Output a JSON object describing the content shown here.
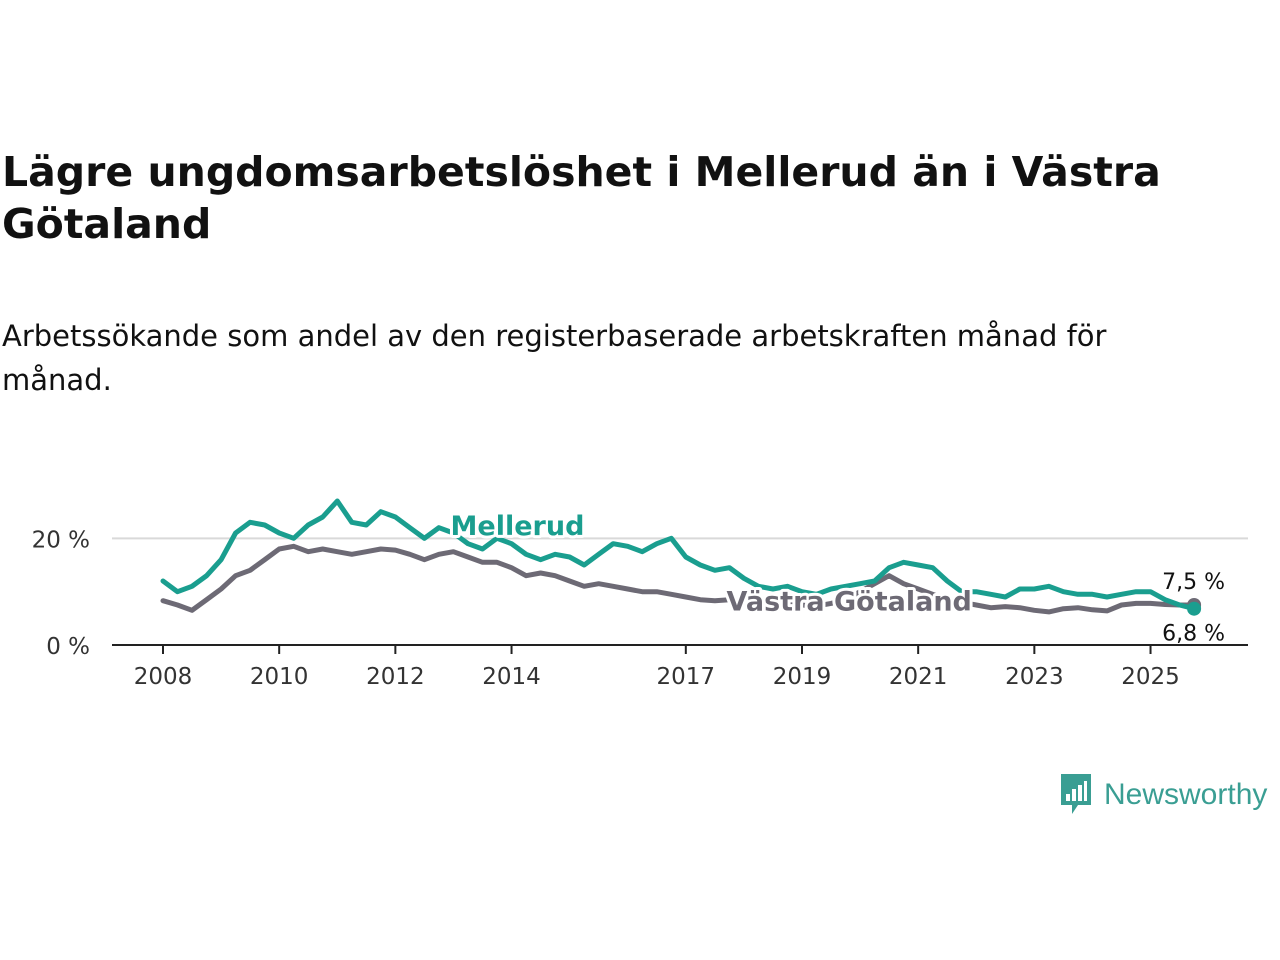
{
  "title": "Lägre ungdomsarbetslöshet i Mellerud än i Västra Götaland",
  "subtitle": "Arbetssökande som andel av den registerbaserade arbetskraften månad för månad.",
  "brand": {
    "name": "Newsworthy",
    "icon": "bar-chart-speech-bubble-icon",
    "color": "#3a9e93"
  },
  "chart_data": {
    "type": "line",
    "x_start": 2008,
    "x_end": 2025.8,
    "ylim": [
      0,
      30
    ],
    "xticks": [
      2008,
      2010,
      2012,
      2014,
      2017,
      2019,
      2021,
      2023,
      2025
    ],
    "xtick_labels": [
      "2008",
      "2010",
      "2012",
      "2014",
      "2017",
      "2019",
      "2021",
      "2023",
      "2025"
    ],
    "yticks": [
      0,
      20
    ],
    "ytick_labels": [
      "0 %",
      "20 %"
    ],
    "grid": "horizontal",
    "series": [
      {
        "name": "Mellerud",
        "label": "Mellerud",
        "color": "#1a9e8f",
        "end_label": "6,8 %",
        "x": [
          2008,
          2008.25,
          2008.5,
          2008.75,
          2009,
          2009.25,
          2009.5,
          2009.75,
          2010,
          2010.25,
          2010.5,
          2010.75,
          2011,
          2011.25,
          2011.5,
          2011.75,
          2012,
          2012.25,
          2012.5,
          2012.75,
          2013,
          2013.25,
          2013.5,
          2013.75,
          2014,
          2014.25,
          2014.5,
          2014.75,
          2015,
          2015.25,
          2015.5,
          2015.75,
          2016,
          2016.25,
          2016.5,
          2016.75,
          2017,
          2017.25,
          2017.5,
          2017.75,
          2018,
          2018.25,
          2018.5,
          2018.75,
          2019,
          2019.25,
          2019.5,
          2019.75,
          2020,
          2020.25,
          2020.5,
          2020.75,
          2021,
          2021.25,
          2021.5,
          2021.75,
          2022,
          2022.25,
          2022.5,
          2022.75,
          2023,
          2023.25,
          2023.5,
          2023.75,
          2024,
          2024.25,
          2024.5,
          2024.75,
          2025,
          2025.25,
          2025.5,
          2025.75
        ],
        "values": [
          12,
          10,
          11,
          13,
          16,
          21,
          23,
          22.5,
          21,
          20,
          22.5,
          24,
          27,
          23,
          22.5,
          25,
          24,
          22,
          20,
          22,
          21,
          19,
          18,
          20,
          19,
          17,
          16,
          17,
          16.5,
          15,
          17,
          19,
          18.5,
          17.5,
          19,
          20,
          16.5,
          15,
          14,
          14.5,
          12.5,
          11,
          10.5,
          11,
          10,
          9.5,
          10.5,
          11,
          11.5,
          12,
          14.5,
          15.5,
          15,
          14.5,
          12,
          10,
          10,
          9.5,
          9,
          10.5,
          10.5,
          11,
          10,
          9.5,
          9.5,
          9,
          9.5,
          10,
          10,
          8.5,
          7.5,
          6.8
        ]
      },
      {
        "name": "Västra Götaland",
        "label": "Västra Götaland",
        "color": "#6d6a75",
        "end_label": "7,5 %",
        "x": [
          2008,
          2008.25,
          2008.5,
          2008.75,
          2009,
          2009.25,
          2009.5,
          2009.75,
          2010,
          2010.25,
          2010.5,
          2010.75,
          2011,
          2011.25,
          2011.5,
          2011.75,
          2012,
          2012.25,
          2012.5,
          2012.75,
          2013,
          2013.25,
          2013.5,
          2013.75,
          2014,
          2014.25,
          2014.5,
          2014.75,
          2015,
          2015.25,
          2015.5,
          2015.75,
          2016,
          2016.25,
          2016.5,
          2016.75,
          2017,
          2017.25,
          2017.5,
          2017.75,
          2018,
          2018.25,
          2018.5,
          2018.75,
          2019,
          2019.25,
          2019.5,
          2019.75,
          2020,
          2020.25,
          2020.5,
          2020.75,
          2021,
          2021.25,
          2021.5,
          2021.75,
          2022,
          2022.25,
          2022.5,
          2022.75,
          2023,
          2023.25,
          2023.5,
          2023.75,
          2024,
          2024.25,
          2024.5,
          2024.75,
          2025,
          2025.25,
          2025.5,
          2025.75
        ],
        "values": [
          8.3,
          7.5,
          6.5,
          8.5,
          10.5,
          13,
          14,
          16,
          18,
          18.5,
          17.5,
          18,
          17.5,
          17,
          17.5,
          18,
          17.8,
          17,
          16,
          17,
          17.5,
          16.5,
          15.5,
          15.5,
          14.5,
          13,
          13.5,
          13,
          12,
          11,
          11.5,
          11,
          10.5,
          10,
          10,
          9.5,
          9,
          8.5,
          8.3,
          8.5,
          8,
          7.8,
          7.6,
          7.8,
          7.5,
          7.3,
          7.8,
          8.5,
          10,
          11.5,
          13,
          11.5,
          10.5,
          9.5,
          8.5,
          8,
          7.5,
          7,
          7.2,
          7,
          6.5,
          6.2,
          6.8,
          7,
          6.6,
          6.4,
          7.5,
          7.8,
          7.8,
          7.6,
          7.5,
          7.5
        ]
      }
    ],
    "annotations": [
      {
        "series": "Mellerud",
        "text": "Mellerud",
        "at_x": 2012.95,
        "at_y": 22.5
      },
      {
        "series": "Västra Götaland",
        "text": "Västra Götaland",
        "at_x": 2017.7,
        "at_y": 8.3
      }
    ]
  }
}
